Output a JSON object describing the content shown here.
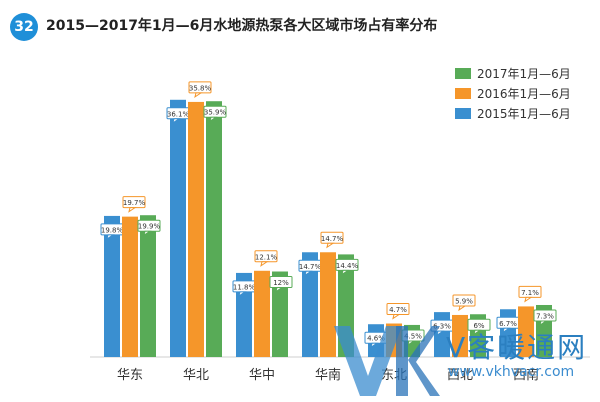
{
  "header": {
    "badge": "32",
    "title": "2015—2017年1月—6月水地源热泵各大区域市场占有率分布"
  },
  "watermark": {
    "cn": "V客暖通网",
    "url": "www.vkhvacr.com"
  },
  "colors": {
    "s2015": "#3a8fd0",
    "s2016": "#f5962a",
    "s2017": "#58ab57",
    "badge": "#1f8fd8"
  },
  "chart_data": {
    "type": "bar",
    "title": "2015—2017年1月—6月水地源热泵各大区域市场占有率分布",
    "categories": [
      "华东",
      "华北",
      "华中",
      "华南",
      "东北",
      "西北",
      "西南"
    ],
    "series": [
      {
        "name": "2015年1月—6月",
        "values": [
          19.8,
          36.1,
          11.8,
          14.7,
          4.6,
          6.3,
          6.7
        ],
        "labels": [
          "19.8%",
          "36.1%",
          "11.8%",
          "14.7%",
          "4.6%",
          "6.3%",
          "6.7%"
        ]
      },
      {
        "name": "2016年1月—6月",
        "values": [
          19.7,
          35.8,
          12.1,
          14.7,
          4.7,
          5.9,
          7.1
        ],
        "labels": [
          "19.7%",
          "35.8%",
          "12.1%",
          "14.7%",
          "4.7%",
          "5.9%",
          "7.1%"
        ]
      },
      {
        "name": "2017年1月—6月",
        "values": [
          19.9,
          35.9,
          12,
          14.4,
          4.5,
          6,
          7.3
        ],
        "labels": [
          "19.9%",
          "35.9%",
          "12%",
          "14.4%",
          "4.5%",
          "6%",
          "7.3%"
        ]
      }
    ],
    "legend_order": [
      "2017年1月—6月",
      "2016年1月—6月",
      "2015年1月—6月"
    ],
    "legend_position": "top-right",
    "ylim": [
      0,
      40
    ],
    "grid": false
  }
}
